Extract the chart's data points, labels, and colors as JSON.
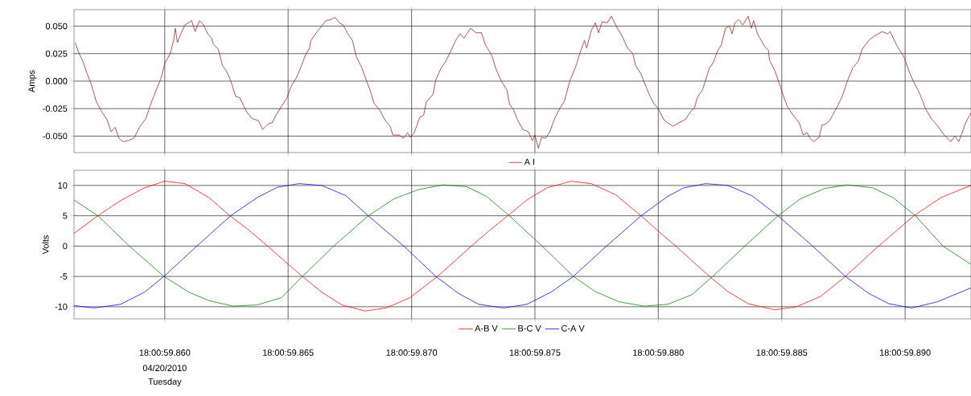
{
  "chart_data": [
    {
      "type": "line",
      "ylabel": "Amps",
      "xlim": [
        "2010-04-20T18:00:59.856320",
        "2010-04-20T18:00:59.892670"
      ],
      "ylim": [
        -0.065,
        0.065
      ],
      "xticks": [
        "2010-04-20T18:00:59.860000",
        "2010-04-20T18:00:59.865000",
        "2010-04-20T18:00:59.870000",
        "2010-04-20T18:00:59.875000",
        "2010-04-20T18:00:59.880000",
        "2010-04-20T18:00:59.885000",
        "2010-04-20T18:00:59.890000"
      ],
      "yticks": [
        {
          "value": -0.05,
          "label": "-0.050"
        },
        {
          "value": -0.025,
          "label": "-0.025"
        },
        {
          "value": 0,
          "label": "0.000"
        },
        {
          "value": 0.025,
          "label": "0.025"
        },
        {
          "value": 0.05,
          "label": "0.050"
        }
      ],
      "tick_labels": "y",
      "grid": true,
      "legend": "bottom",
      "series": [
        {
          "name": "A I",
          "color": "#9b1b1b",
          "x": [
            "2010-04-20T18:00:59.856380",
            "2010-04-20T18:00:59.856490",
            "2010-04-20T18:00:59.856680",
            "2010-04-20T18:00:59.856850",
            "2010-04-20T18:00:59.857010",
            "2010-04-20T18:00:59.857230",
            "2010-04-20T18:00:59.857450",
            "2010-04-20T18:00:59.857660",
            "2010-04-20T18:00:59.857830",
            "2010-04-20T18:00:59.857990",
            "2010-04-20T18:00:59.858150",
            "2010-04-20T18:00:59.858320",
            "2010-04-20T18:00:59.858530",
            "2010-04-20T18:00:59.858750",
            "2010-04-20T18:00:59.858970",
            "2010-04-20T18:00:59.859240",
            "2010-04-20T18:00:59.859400",
            "2010-04-20T18:00:59.859620",
            "2010-04-20T18:00:59.859840",
            "2010-04-20T18:00:59.860000",
            "2010-04-20T18:00:59.860220",
            "2010-04-20T18:00:59.860360",
            "2010-04-20T18:00:59.860430",
            "2010-04-20T18:00:59.860510",
            "2010-04-20T18:00:59.860650",
            "2010-04-20T18:00:59.860820",
            "2010-04-20T18:00:59.861090",
            "2010-04-20T18:00:59.861230",
            "2010-04-20T18:00:59.861410",
            "2010-04-20T18:00:59.861580",
            "2010-04-20T18:00:59.861740",
            "2010-04-20T18:00:59.861900",
            "2010-04-20T18:00:59.861960",
            "2010-04-20T18:00:59.862170",
            "2010-04-20T18:00:59.862340",
            "2010-04-20T18:00:59.862500",
            "2010-04-20T18:00:59.862660",
            "2010-04-20T18:00:59.862880",
            "2010-04-20T18:00:59.863040",
            "2010-04-20T18:00:59.863320",
            "2010-04-20T18:00:59.863530",
            "2010-04-20T18:00:59.863800",
            "2010-04-20T18:00:59.863970",
            "2010-04-20T18:00:59.864180",
            "2010-04-20T18:00:59.864350",
            "2010-04-20T18:00:59.864510",
            "2010-04-20T18:00:59.864730",
            "2010-04-20T18:00:59.864950",
            "2010-04-20T18:00:59.865110",
            "2010-04-20T18:00:59.865330",
            "2010-04-20T18:00:59.865540",
            "2010-04-20T18:00:59.865710",
            "2010-04-20T18:00:59.865870",
            "2010-04-20T18:00:59.865920",
            "2010-04-20T18:00:59.866140",
            "2010-04-20T18:00:59.866360",
            "2010-04-20T18:00:59.866520",
            "2010-04-20T18:00:59.866740",
            "2010-04-20T18:00:59.866900",
            "2010-04-20T18:00:59.867070",
            "2010-04-20T18:00:59.867230",
            "2010-04-20T18:00:59.867390",
            "2010-04-20T18:00:59.867610",
            "2010-04-20T18:00:59.867770",
            "2010-04-20T18:00:59.867990",
            "2010-04-20T18:00:59.868150",
            "2010-04-20T18:00:59.868320",
            "2010-04-20T18:00:59.868480",
            "2010-04-20T18:00:59.868620",
            "2010-04-20T18:00:59.868700",
            "2010-04-20T18:00:59.868910",
            "2010-04-20T18:00:59.869130",
            "2010-04-20T18:00:59.869240",
            "2010-04-20T18:00:59.869510",
            "2010-04-20T18:00:59.869670",
            "2010-04-20T18:00:59.869840",
            "2010-04-20T18:00:59.869950",
            "2010-04-20T18:00:59.870110",
            "2010-04-20T18:00:59.870330",
            "2010-04-20T18:00:59.870490",
            "2010-04-20T18:00:59.870600",
            "2010-04-20T18:00:59.870870",
            "2010-04-20T18:00:59.870980",
            "2010-04-20T18:00:59.871200",
            "2010-04-20T18:00:59.871360",
            "2010-04-20T18:00:59.871580",
            "2010-04-20T18:00:59.871790",
            "2010-04-20T18:00:59.871960",
            "2010-04-20T18:00:59.872120",
            "2010-04-20T18:00:59.872390",
            "2010-04-20T18:00:59.872610",
            "2010-04-20T18:00:59.872830",
            "2010-04-20T18:00:59.872990",
            "2010-04-20T18:00:59.873260",
            "2010-04-20T18:00:59.873420",
            "2010-04-20T18:00:59.873640",
            "2010-04-20T18:00:59.873860",
            "2010-04-20T18:00:59.873970",
            "2010-04-20T18:00:59.874130",
            "2010-04-20T18:00:59.874290",
            "2010-04-20T18:00:59.874510",
            "2010-04-20T18:00:59.874730",
            "2010-04-20T18:00:59.874890",
            "2010-04-20T18:00:59.875000",
            "2010-04-20T18:00:59.875140",
            "2010-04-20T18:00:59.875270",
            "2010-04-20T18:00:59.875430",
            "2010-04-20T18:00:59.875600",
            "2010-04-20T18:00:59.875820",
            "2010-04-20T18:00:59.876030",
            "2010-04-20T18:00:59.876200",
            "2010-04-20T18:00:59.876410",
            "2010-04-20T18:00:59.876630",
            "2010-04-20T18:00:59.876850",
            "2010-04-20T18:00:59.877010",
            "2010-04-20T18:00:59.877100",
            "2010-04-20T18:00:59.877280",
            "2010-04-20T18:00:59.877450",
            "2010-04-20T18:00:59.877580",
            "2010-04-20T18:00:59.877720",
            "2010-04-20T18:00:59.877930",
            "2010-04-20T18:00:59.878100",
            "2010-04-20T18:00:59.878320",
            "2010-04-20T18:00:59.878530",
            "2010-04-20T18:00:59.878750",
            "2010-04-20T18:00:59.878970",
            "2010-04-20T18:00:59.879080",
            "2010-04-20T18:00:59.879290",
            "2010-04-20T18:00:59.879460",
            "2010-04-20T18:00:59.879670",
            "2010-04-20T18:00:59.879840",
            "2010-04-20T18:00:59.880000",
            "2010-04-20T18:00:59.880220",
            "2010-04-20T18:00:59.880380",
            "2010-04-20T18:00:59.880600",
            "2010-04-20T18:00:59.880820",
            "2010-04-20T18:00:59.881090",
            "2010-04-20T18:00:59.881300",
            "2010-04-20T18:00:59.881470",
            "2010-04-20T18:00:59.881580",
            "2010-04-20T18:00:59.881790",
            "2010-04-20T18:00:59.881960",
            "2010-04-20T18:00:59.882070",
            "2010-04-20T18:00:59.882230",
            "2010-04-20T18:00:59.882390",
            "2010-04-20T18:00:59.882550",
            "2010-04-20T18:00:59.882720",
            "2010-04-20T18:00:59.882880",
            "2010-04-20T18:00:59.882990",
            "2010-04-20T18:00:59.883100",
            "2010-04-20T18:00:59.883260",
            "2010-04-20T18:00:59.883420",
            "2010-04-20T18:00:59.883640",
            "2010-04-20T18:00:59.883770",
            "2010-04-20T18:00:59.883860",
            "2010-04-20T18:00:59.884020",
            "2010-04-20T18:00:59.884290",
            "2010-04-20T18:00:59.884460",
            "2010-04-20T18:00:59.884510",
            "2010-04-20T18:00:59.884730",
            "2010-04-20T18:00:59.884950",
            "2010-04-20T18:00:59.885050",
            "2010-04-20T18:00:59.885220",
            "2010-04-20T18:00:59.885430",
            "2010-04-20T18:00:59.885710",
            "2010-04-20T18:00:59.885870",
            "2010-04-20T18:00:59.886030",
            "2010-04-20T18:00:59.886140",
            "2010-04-20T18:00:59.886300",
            "2010-04-20T18:00:59.886520",
            "2010-04-20T18:00:59.886630",
            "2010-04-20T18:00:59.886790",
            "2010-04-20T18:00:59.886960",
            "2010-04-20T18:00:59.887230",
            "2010-04-20T18:00:59.887450",
            "2010-04-20T18:00:59.887660",
            "2010-04-20T18:00:59.887880",
            "2010-04-20T18:00:59.888100",
            "2010-04-20T18:00:59.888260",
            "2010-04-20T18:00:59.888530",
            "2010-04-20T18:00:59.888750",
            "2010-04-20T18:00:59.888910",
            "2010-04-20T18:00:59.889080",
            "2010-04-20T18:00:59.889290",
            "2010-04-20T18:00:59.889400",
            "2010-04-20T18:00:59.889670",
            "2010-04-20T18:00:59.889950",
            "2010-04-20T18:00:59.890160",
            "2010-04-20T18:00:59.890330",
            "2010-04-20T18:00:59.890540",
            "2010-04-20T18:00:59.890710",
            "2010-04-20T18:00:59.890820",
            "2010-04-20T18:00:59.891090",
            "2010-04-20T18:00:59.891300",
            "2010-04-20T18:00:59.891580",
            "2010-04-20T18:00:59.891850",
            "2010-04-20T18:00:59.892010",
            "2010-04-20T18:00:59.892170",
            "2010-04-20T18:00:59.892340",
            "2010-04-20T18:00:59.892450",
            "2010-04-20T18:00:59.892660"
          ],
          "values": [
            0.035,
            0.027,
            0.018,
            0.007,
            -0.002,
            -0.019,
            -0.028,
            -0.035,
            -0.046,
            -0.042,
            -0.052,
            -0.055,
            -0.054,
            -0.052,
            -0.042,
            -0.034,
            -0.023,
            -0.01,
            0.002,
            0.016,
            0.025,
            0.037,
            0.048,
            0.035,
            0.043,
            0.051,
            0.055,
            0.045,
            0.055,
            0.051,
            0.043,
            0.039,
            0.034,
            0.029,
            0.014,
            0.009,
            0.001,
            -0.014,
            -0.015,
            -0.028,
            -0.034,
            -0.036,
            -0.044,
            -0.039,
            -0.038,
            -0.031,
            -0.023,
            -0.015,
            -0.005,
            0.003,
            0.014,
            0.024,
            0.03,
            0.037,
            0.044,
            0.05,
            0.055,
            0.056,
            0.058,
            0.053,
            0.051,
            0.044,
            0.037,
            0.022,
            0.012,
            0.002,
            -0.008,
            -0.02,
            -0.024,
            -0.026,
            -0.035,
            -0.041,
            -0.049,
            -0.049,
            -0.052,
            -0.047,
            -0.051,
            -0.047,
            -0.033,
            -0.031,
            -0.019,
            -0.012,
            0.001,
            0.012,
            0.017,
            0.027,
            0.037,
            0.043,
            0.039,
            0.048,
            0.044,
            0.044,
            0.033,
            0.023,
            0.011,
            0.0,
            -0.008,
            -0.021,
            -0.026,
            -0.035,
            -0.044,
            -0.046,
            -0.054,
            -0.049,
            -0.061,
            -0.051,
            -0.052,
            -0.046,
            -0.033,
            -0.024,
            -0.018,
            0.0,
            0.012,
            0.027,
            0.037,
            0.03,
            0.046,
            0.053,
            0.044,
            0.054,
            0.053,
            0.059,
            0.049,
            0.041,
            0.03,
            0.025,
            0.014,
            0.007,
            -0.003,
            -0.014,
            -0.021,
            -0.025,
            -0.035,
            -0.038,
            -0.041,
            -0.038,
            -0.035,
            -0.028,
            -0.024,
            -0.015,
            -0.008,
            0.004,
            0.012,
            0.017,
            0.027,
            0.033,
            0.048,
            0.05,
            0.043,
            0.053,
            0.056,
            0.051,
            0.059,
            0.048,
            0.055,
            0.043,
            0.032,
            0.028,
            0.019,
            0.009,
            -0.005,
            -0.012,
            -0.023,
            -0.03,
            -0.038,
            -0.049,
            -0.047,
            -0.052,
            -0.055,
            -0.051,
            -0.04,
            -0.039,
            -0.035,
            -0.024,
            -0.014,
            0.0,
            0.012,
            0.018,
            0.029,
            0.037,
            0.041,
            0.043,
            0.045,
            0.043,
            0.045,
            0.032,
            0.022,
            0.009,
            0.0,
            -0.009,
            -0.018,
            -0.025,
            -0.035,
            -0.04,
            -0.049,
            -0.055,
            -0.05,
            -0.055,
            -0.045,
            -0.038,
            -0.029
          ]
        }
      ]
    },
    {
      "type": "line",
      "ylabel": "Volts",
      "xlim": [
        "2010-04-20T18:00:59.856320",
        "2010-04-20T18:00:59.892670"
      ],
      "ylim": [
        -12,
        12.5
      ],
      "xticks": [
        {
          "value": "2010-04-20T18:00:59.860000",
          "label": "18:00:59.860"
        },
        {
          "value": "2010-04-20T18:00:59.865000",
          "label": "18:00:59.865"
        },
        {
          "value": "2010-04-20T18:00:59.870000",
          "label": "18:00:59.870"
        },
        {
          "value": "2010-04-20T18:00:59.875000",
          "label": "18:00:59.875"
        },
        {
          "value": "2010-04-20T18:00:59.880000",
          "label": "18:00:59.880"
        },
        {
          "value": "2010-04-20T18:00:59.885000",
          "label": "18:00:59.885"
        },
        {
          "value": "2010-04-20T18:00:59.890000",
          "label": "18:00:59.890"
        }
      ],
      "yticks": [
        -10,
        -5,
        0,
        5,
        10
      ],
      "grid": true,
      "legend": "bottom",
      "annotations": [
        "04/20/2010",
        "Tuesday"
      ],
      "series": [
        {
          "name": "A-B V",
          "color": "#ff0000",
          "x": [
            "2010-04-20T18:00:59.856320",
            "2010-04-20T18:00:59.857290",
            "2010-04-20T18:00:59.858210",
            "2010-04-20T18:00:59.859180",
            "2010-04-20T18:00:59.860000",
            "2010-04-20T18:00:59.860820",
            "2010-04-20T18:00:59.861790",
            "2010-04-20T18:00:59.862640",
            "2010-04-20T18:00:59.863420",
            "2010-04-20T18:00:59.864170",
            "2010-04-20T18:00:59.864890",
            "2010-04-20T18:00:59.865580",
            "2010-04-20T18:00:59.866360",
            "2010-04-20T18:00:59.867170",
            "2010-04-20T18:00:59.868120",
            "2010-04-20T18:00:59.868970",
            "2010-04-20T18:00:59.869940",
            "2010-04-20T18:00:59.871050",
            "2010-04-20T18:00:59.871740",
            "2010-04-20T18:00:59.872420",
            "2010-04-20T18:00:59.873140",
            "2010-04-20T18:00:59.873890",
            "2010-04-20T18:00:59.874670",
            "2010-04-20T18:00:59.875490",
            "2010-04-20T18:00:59.876470",
            "2010-04-20T18:00:59.877280",
            "2010-04-20T18:00:59.878260",
            "2010-04-20T18:00:59.879300",
            "2010-04-20T18:00:59.879990",
            "2010-04-20T18:00:59.880710",
            "2010-04-20T18:00:59.882070",
            "2010-04-20T18:00:59.882820",
            "2010-04-20T18:00:59.883640",
            "2010-04-20T18:00:59.884710",
            "2010-04-20T18:00:59.885600",
            "2010-04-20T18:00:59.886570",
            "2010-04-20T18:00:59.887580",
            "2010-04-20T18:00:59.888920",
            "2010-04-20T18:00:59.890360",
            "2010-04-20T18:00:59.891460",
            "2010-04-20T18:00:59.892660"
          ],
          "values": [
            2.1,
            5.0,
            7.5,
            9.6,
            10.7,
            10.3,
            8.0,
            5.0,
            2.6,
            0,
            -2.6,
            -5.0,
            -7.6,
            -9.7,
            -10.7,
            -10.2,
            -8.5,
            -5.0,
            -2.5,
            0,
            2.5,
            5.0,
            7.6,
            9.6,
            10.7,
            10.3,
            8.5,
            5.0,
            2.5,
            0,
            -5.0,
            -7.5,
            -9.5,
            -10.5,
            -10.0,
            -8.3,
            -5.0,
            0,
            5.0,
            8.0,
            10.0
          ]
        },
        {
          "name": "B-C V",
          "color": "#008000",
          "x": [
            "2010-04-20T18:00:59.856320",
            "2010-04-20T18:00:59.857290",
            "2010-04-20T18:00:59.858570",
            "2010-04-20T18:00:59.859970",
            "2010-04-20T18:00:59.860980",
            "2010-04-20T18:00:59.861790",
            "2010-04-20T18:00:59.862770",
            "2010-04-20T18:00:59.863750",
            "2010-04-20T18:00:59.864730",
            "2010-04-20T18:00:59.865580",
            "2010-04-20T18:00:59.866850",
            "2010-04-20T18:00:59.868250",
            "2010-04-20T18:00:59.869290",
            "2010-04-20T18:00:59.870270",
            "2010-04-20T18:00:59.871280",
            "2010-04-20T18:00:59.872230",
            "2010-04-20T18:00:59.873040",
            "2010-04-20T18:00:59.873960",
            "2010-04-20T18:00:59.875290",
            "2010-04-20T18:00:59.876560",
            "2010-04-20T18:00:59.877440",
            "2010-04-20T18:00:59.878420",
            "2010-04-20T18:00:59.879430",
            "2010-04-20T18:00:59.880380",
            "2010-04-20T18:00:59.881360",
            "2010-04-20T18:00:59.882200",
            "2010-04-20T18:00:59.883510",
            "2010-04-20T18:00:59.884850",
            "2010-04-20T18:00:59.885760",
            "2010-04-20T18:00:59.886740",
            "2010-04-20T18:00:59.887680",
            "2010-04-20T18:00:59.888690",
            "2010-04-20T18:00:59.889510",
            "2010-04-20T18:00:59.890420",
            "2010-04-20T18:00:59.891530",
            "2010-04-20T18:00:59.892660"
          ],
          "values": [
            7.6,
            5.0,
            0,
            -5.0,
            -7.6,
            -9.0,
            -9.9,
            -9.7,
            -8.5,
            -5.0,
            0,
            5.0,
            7.8,
            9.3,
            10.1,
            9.8,
            8.2,
            5.0,
            0,
            -5.0,
            -7.5,
            -9.2,
            -9.9,
            -9.6,
            -8.0,
            -5.0,
            0,
            5.0,
            7.8,
            9.5,
            10.1,
            9.6,
            8.0,
            5.0,
            0,
            -3.0
          ]
        },
        {
          "name": "C-A V",
          "color": "#0000ff",
          "x": [
            "2010-04-20T18:00:59.856320",
            "2010-04-20T18:00:59.857130",
            "2010-04-20T18:00:59.858210",
            "2010-04-20T18:00:59.859180",
            "2010-04-20T18:00:59.859970",
            "2010-04-20T18:00:59.861300",
            "2010-04-20T18:00:59.862670",
            "2010-04-20T18:00:59.863750",
            "2010-04-20T18:00:59.864560",
            "2010-04-20T18:00:59.865440",
            "2010-04-20T18:00:59.866360",
            "2010-04-20T18:00:59.867340",
            "2010-04-20T18:00:59.868250",
            "2010-04-20T18:00:59.869680",
            "2010-04-20T18:00:59.870990",
            "2010-04-20T18:00:59.871900",
            "2010-04-20T18:00:59.872720",
            "2010-04-20T18:00:59.873730",
            "2010-04-20T18:00:59.874670",
            "2010-04-20T18:00:59.875650",
            "2010-04-20T18:00:59.876560",
            "2010-04-20T18:00:59.877900",
            "2010-04-20T18:00:59.879300",
            "2010-04-20T18:00:59.880380",
            "2010-04-20T18:00:59.881030",
            "2010-04-20T18:00:59.881910",
            "2010-04-20T18:00:59.882820",
            "2010-04-20T18:00:59.883800",
            "2010-04-20T18:00:59.884850",
            "2010-04-20T18:00:59.886250",
            "2010-04-20T18:00:59.887580",
            "2010-04-20T18:00:59.888530",
            "2010-04-20T18:00:59.889340",
            "2010-04-20T18:00:59.890260",
            "2010-04-20T18:00:59.891300",
            "2010-04-20T18:00:59.892660"
          ],
          "values": [
            -9.8,
            -10.2,
            -9.6,
            -7.6,
            -5.0,
            0,
            5.0,
            8.0,
            9.7,
            10.3,
            10.0,
            8.3,
            5.0,
            0,
            -5.0,
            -7.8,
            -9.6,
            -10.2,
            -9.6,
            -7.6,
            -5.0,
            0,
            5.0,
            8.2,
            9.6,
            10.3,
            10.0,
            8.3,
            5.0,
            0,
            -5.0,
            -7.8,
            -9.5,
            -10.2,
            -9.2,
            -6.9
          ]
        }
      ]
    }
  ]
}
